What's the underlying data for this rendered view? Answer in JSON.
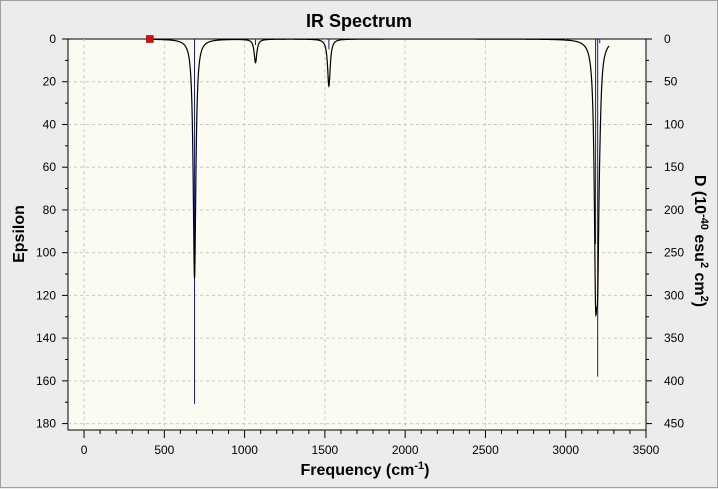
{
  "chart_data": {
    "type": "line",
    "title": "IR Spectrum",
    "xlabel": {
      "text": "Frequency (cm",
      "sup": "-1",
      "tail": ")"
    },
    "ylabel": "Epsilon",
    "y2label": {
      "pre": "D (10",
      "sup1": "-40",
      "mid": " esu",
      "sup2": "2",
      "mid2": " cm",
      "sup3": "2",
      "tail": ")"
    },
    "xlim": [
      -100,
      3500
    ],
    "ylim": [
      0,
      183
    ],
    "y2lim": [
      0,
      457.5
    ],
    "x_ticks": [
      0,
      500,
      1000,
      1500,
      2000,
      2500,
      3000,
      3500
    ],
    "x_tick_labels": [
      "0",
      "500",
      "1000",
      "1500",
      "2000",
      "2500",
      "3000",
      "3500"
    ],
    "y_ticks": [
      0,
      20,
      40,
      60,
      80,
      100,
      120,
      140,
      160,
      180
    ],
    "y_tick_labels": [
      "0",
      "20",
      "40",
      "60",
      "80",
      "100",
      "120",
      "140",
      "160",
      "180"
    ],
    "y2_ticks": [
      0,
      50,
      100,
      150,
      200,
      250,
      300,
      350,
      400,
      450
    ],
    "y2_tick_labels": [
      "0",
      "50",
      "100",
      "150",
      "200",
      "250",
      "300",
      "350",
      "400",
      "450"
    ],
    "grid": true,
    "y_inverted": true,
    "spectrum_range": [
      400,
      3270
    ],
    "peak_width": 10,
    "peaks": [
      {
        "frequency": 688,
        "epsilon": 112,
        "intensity": 427
      },
      {
        "frequency": 1068,
        "epsilon": 11,
        "intensity": 7
      },
      {
        "frequency": 1525,
        "epsilon": 22,
        "intensity": 12
      },
      {
        "frequency": 3186,
        "epsilon": 94,
        "intensity": 240
      },
      {
        "frequency": 3199,
        "epsilon": 82,
        "intensity": 395
      },
      {
        "frequency": 3212,
        "epsilon": 12,
        "intensity": 5
      }
    ],
    "marker": {
      "frequency": 410,
      "epsilon": 0
    },
    "colors": {
      "plot_bg": "#fbfbf1",
      "grid": "#c8c8c8",
      "curve": "#000000",
      "stick": "#1a1a8c",
      "marker": "#d01010"
    }
  }
}
